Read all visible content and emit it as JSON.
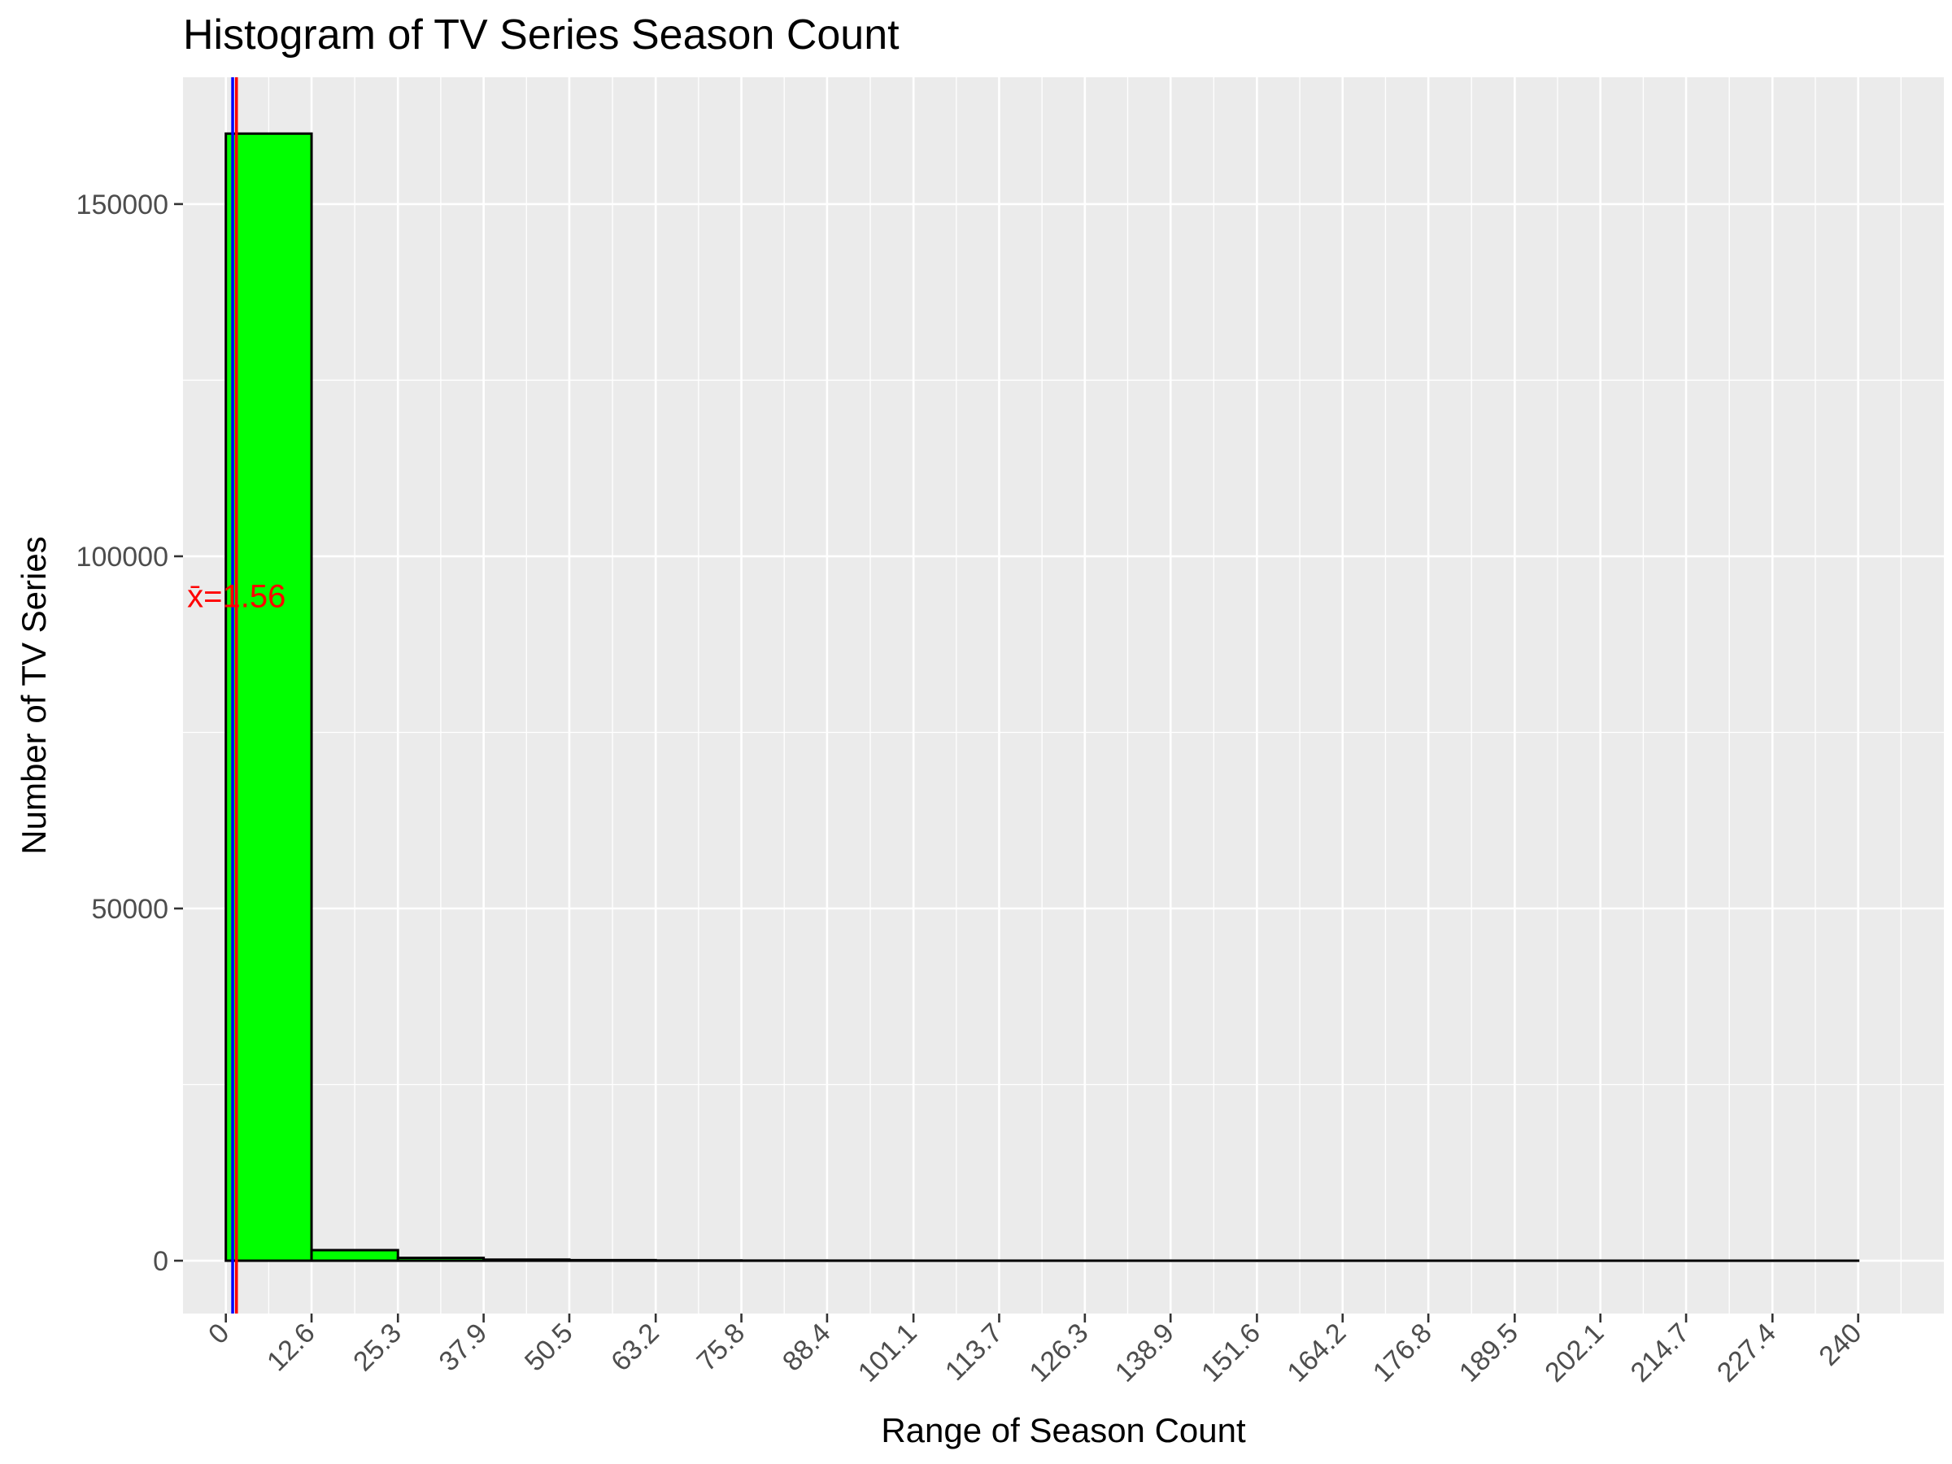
{
  "chart_data": {
    "type": "bar",
    "title": "Histogram of TV Series Season Count",
    "xlabel": "Range of Season Count",
    "ylabel": "Number of TV Series",
    "x_ticks": [
      "0",
      "12.6",
      "25.3",
      "37.9",
      "50.5",
      "63.2",
      "75.8",
      "88.4",
      "101.1",
      "113.7",
      "126.3",
      "138.9",
      "151.6",
      "164.2",
      "176.8",
      "189.5",
      "202.1",
      "214.7",
      "227.4",
      "240"
    ],
    "x_tick_values": [
      0,
      12.6,
      25.3,
      37.9,
      50.5,
      63.2,
      75.8,
      88.4,
      101.1,
      113.7,
      126.3,
      138.9,
      151.6,
      164.2,
      176.8,
      189.5,
      202.1,
      214.7,
      227.4,
      240
    ],
    "y_ticks": [
      0,
      50000,
      100000,
      150000
    ],
    "y_tick_labels": [
      "0",
      "50000",
      "100000",
      "150000"
    ],
    "xlim": [
      -6.3,
      252.6
    ],
    "ylim": [
      -7500,
      168000
    ],
    "bins": [
      {
        "start": 0,
        "end": 12.6,
        "count": 160000
      },
      {
        "start": 12.6,
        "end": 25.3,
        "count": 1500
      },
      {
        "start": 25.3,
        "end": 37.9,
        "count": 400
      },
      {
        "start": 37.9,
        "end": 50.5,
        "count": 150
      },
      {
        "start": 50.5,
        "end": 63.2,
        "count": 80
      },
      {
        "start": 63.2,
        "end": 75.8,
        "count": 30
      },
      {
        "start": 75.8,
        "end": 88.4,
        "count": 15
      },
      {
        "start": 88.4,
        "end": 101.1,
        "count": 10
      },
      {
        "start": 101.1,
        "end": 113.7,
        "count": 5
      },
      {
        "start": 113.7,
        "end": 126.3,
        "count": 5
      },
      {
        "start": 126.3,
        "end": 138.9,
        "count": 3
      },
      {
        "start": 138.9,
        "end": 151.6,
        "count": 2
      },
      {
        "start": 151.6,
        "end": 164.2,
        "count": 2
      },
      {
        "start": 164.2,
        "end": 176.8,
        "count": 1
      },
      {
        "start": 176.8,
        "end": 189.5,
        "count": 1
      },
      {
        "start": 189.5,
        "end": 202.1,
        "count": 1
      },
      {
        "start": 202.1,
        "end": 214.7,
        "count": 1
      },
      {
        "start": 214.7,
        "end": 227.4,
        "count": 0
      },
      {
        "start": 227.4,
        "end": 240,
        "count": 1
      }
    ],
    "mean_line": {
      "value": 1.56,
      "color": "#ff0000"
    },
    "median_line": {
      "value": 1,
      "color": "#0000ff"
    },
    "mean_label": "x̄=1.56",
    "bar_fill": "#00ff00",
    "bar_stroke": "#000000",
    "panel_background": "#ebebeb",
    "grid": true,
    "grid_color": "#ffffff"
  }
}
